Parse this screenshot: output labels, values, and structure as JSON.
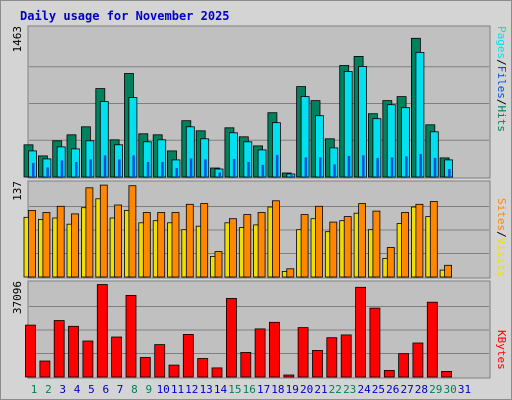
{
  "title": "Daily usage for November 2025",
  "colors": {
    "hits": "#00805c",
    "files": "#00e0f0",
    "pages": "#0050e0",
    "visits": "#f0e000",
    "sites": "#ff8800",
    "kbytes": "#ff0000",
    "title": "#0000c8",
    "weekend_day": "#00805c",
    "weekday_day": "#0000c8",
    "panel_bg": "#c0c0c0",
    "frame_bg": "#d4d4d4",
    "grid": "#808080"
  },
  "chart_data": [
    {
      "type": "bar",
      "title": "Daily usage for November 2025",
      "categories": [
        "1",
        "2",
        "3",
        "4",
        "5",
        "6",
        "7",
        "8",
        "9",
        "10",
        "11",
        "12",
        "13",
        "14",
        "15",
        "16",
        "17",
        "18",
        "19",
        "20",
        "21",
        "22",
        "23",
        "24",
        "25",
        "26",
        "27",
        "28",
        "29",
        "30",
        "31"
      ],
      "weekend_days": [
        "1",
        "2",
        "8",
        "9",
        "15",
        "16",
        "22",
        "23",
        "29",
        "30"
      ],
      "scale_label": "1463",
      "ymax": 1463,
      "ylabel_parts": [
        "Pages",
        "/",
        "Files",
        "/",
        "Hits"
      ],
      "series": [
        {
          "name": "Hits",
          "values": [
            320,
            210,
            360,
            420,
            500,
            880,
            370,
            1030,
            430,
            420,
            260,
            560,
            460,
            90,
            490,
            400,
            310,
            640,
            40,
            900,
            760,
            380,
            1110,
            1200,
            630,
            760,
            800,
            1380,
            520,
            190,
            0
          ]
        },
        {
          "name": "Files",
          "values": [
            260,
            180,
            300,
            280,
            360,
            750,
            320,
            790,
            350,
            370,
            170,
            500,
            380,
            80,
            440,
            350,
            270,
            540,
            30,
            800,
            610,
            290,
            1050,
            1100,
            580,
            720,
            690,
            1240,
            450,
            170,
            0
          ]
        },
        {
          "name": "Pages",
          "values": [
            140,
            95,
            165,
            150,
            175,
            215,
            175,
            215,
            150,
            150,
            90,
            185,
            175,
            45,
            180,
            150,
            120,
            220,
            18,
            195,
            195,
            125,
            210,
            215,
            190,
            195,
            205,
            230,
            190,
            80,
            0
          ]
        }
      ]
    },
    {
      "type": "bar",
      "scale_label": "137",
      "ymax": 137,
      "ylabel_parts": [
        "Sites",
        "/",
        "Visits"
      ],
      "series": [
        {
          "name": "Visits",
          "values": [
            87,
            84,
            86,
            77,
            101,
            114,
            86,
            97,
            79,
            82,
            79,
            69,
            74,
            30,
            79,
            72,
            76,
            102,
            8,
            69,
            85,
            66,
            82,
            93,
            69,
            27,
            78,
            102,
            88,
            10,
            0
          ]
        },
        {
          "name": "Sites",
          "values": [
            97,
            94,
            103,
            92,
            130,
            134,
            105,
            133,
            94,
            94,
            94,
            106,
            107,
            37,
            85,
            91,
            94,
            111,
            12,
            91,
            103,
            80,
            88,
            107,
            96,
            43,
            94,
            106,
            110,
            17,
            0
          ]
        }
      ]
    },
    {
      "type": "bar",
      "scale_label": "37096",
      "ymax": 37096,
      "ylabel_parts": [
        "KBytes"
      ],
      "series": [
        {
          "name": "KBytes",
          "values": [
            20500,
            6300,
            22300,
            20000,
            14200,
            36500,
            15800,
            32200,
            7700,
            12800,
            4700,
            16800,
            7300,
            3600,
            31000,
            9700,
            19000,
            21600,
            800,
            19500,
            10500,
            15500,
            16600,
            35400,
            27200,
            2600,
            9200,
            13400,
            29500,
            2200,
            0
          ]
        }
      ]
    }
  ]
}
